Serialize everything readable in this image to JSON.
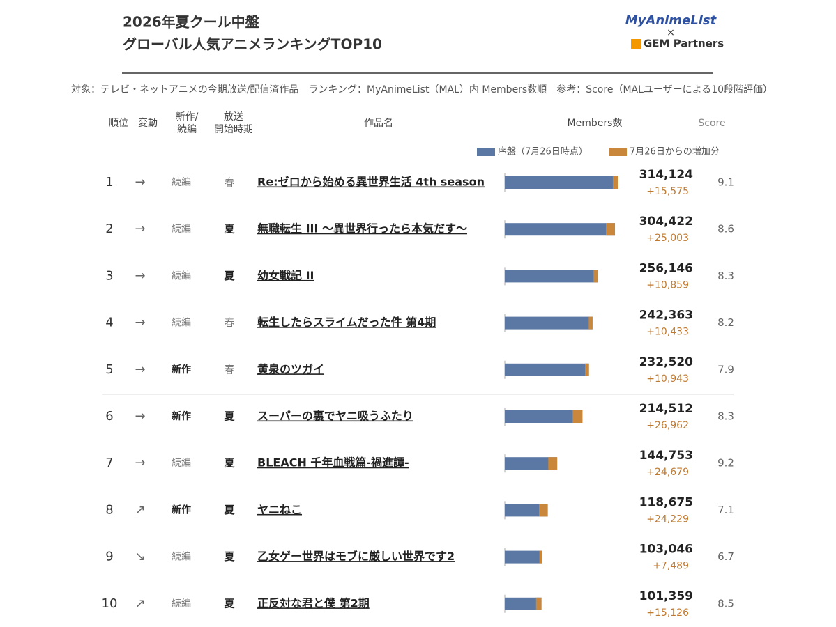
{
  "header": {
    "title": [
      "2026年夏クール中盤",
      "グローバル人気アニメランキングTOP10"
    ],
    "logo": {
      "top": "MyAnimeList",
      "mid": "×",
      "bottom": "GEM Partners"
    },
    "note": "対象：テレビ・ネットアニメの今期放送/配信済作品　ランキング：MyAnimeList（MAL）内 Members数順　参考：Score（MALユーザーによる10段階評価）"
  },
  "columns": [
    "順位",
    "変動",
    "新作/\n続編",
    "放送\n開始時期",
    "作品名",
    "Members数",
    "Score"
  ],
  "legend": [
    {
      "name": "序盤（7月26日時点）",
      "color": "#5b77a3"
    },
    {
      "name": "7月26日からの増加分",
      "color": "#c8873a"
    }
  ],
  "rows": [
    {
      "rank": 1,
      "change": "→",
      "kind": "続編",
      "kind_bold": false,
      "season": "春",
      "season_bold": false,
      "title": "Re:ゼロから始める異世界生活 4th season",
      "members": 314124,
      "members_label": "314,124",
      "increase": 15575,
      "increase_label": "+15,575",
      "score": 9.1
    },
    {
      "rank": 2,
      "change": "→",
      "kind": "続編",
      "kind_bold": false,
      "season": "夏",
      "season_bold": true,
      "title": "無職転生 III ～異世界行ったら本気だす～",
      "members": 304422,
      "members_label": "304,422",
      "increase": 25003,
      "increase_label": "+25,003",
      "score": 8.6
    },
    {
      "rank": 3,
      "change": "→",
      "kind": "続編",
      "kind_bold": false,
      "season": "夏",
      "season_bold": true,
      "title": "幼女戦記 II",
      "members": 256146,
      "members_label": "256,146",
      "increase": 10859,
      "increase_label": "+10,859",
      "score": 8.3
    },
    {
      "rank": 4,
      "change": "→",
      "kind": "続編",
      "kind_bold": false,
      "season": "春",
      "season_bold": false,
      "title": "転生したらスライムだった件 第4期",
      "members": 242363,
      "members_label": "242,363",
      "increase": 10433,
      "increase_label": "+10,433",
      "score": 8.2
    },
    {
      "rank": 5,
      "change": "→",
      "kind": "新作",
      "kind_bold": true,
      "season": "春",
      "season_bold": false,
      "title": "黄泉のツガイ",
      "members": 232520,
      "members_label": "232,520",
      "increase": 10943,
      "increase_label": "+10,943",
      "score": 7.9
    },
    {
      "rank": 6,
      "change": "→",
      "kind": "新作",
      "kind_bold": true,
      "season": "夏",
      "season_bold": true,
      "title": "スーパーの裏でヤニ吸うふたり",
      "members": 214512,
      "members_label": "214,512",
      "increase": 26962,
      "increase_label": "+26,962",
      "score": 8.3
    },
    {
      "rank": 7,
      "change": "→",
      "kind": "続編",
      "kind_bold": false,
      "season": "夏",
      "season_bold": true,
      "title": "BLEACH 千年血戦篇-禍進譚-",
      "members": 144753,
      "members_label": "144,753",
      "increase": 24679,
      "increase_label": "+24,679",
      "score": 9.2
    },
    {
      "rank": 8,
      "change": "↗",
      "kind": "新作",
      "kind_bold": true,
      "season": "夏",
      "season_bold": true,
      "title": "ヤニねこ",
      "members": 118675,
      "members_label": "118,675",
      "increase": 24229,
      "increase_label": "+24,229",
      "score": 7.1
    },
    {
      "rank": 9,
      "change": "↘",
      "kind": "続編",
      "kind_bold": false,
      "season": "夏",
      "season_bold": true,
      "title": "乙女ゲー世界はモブに厳しい世界です2",
      "members": 103046,
      "members_label": "103,046",
      "increase": 7489,
      "increase_label": "+7,489",
      "score": 6.7
    },
    {
      "rank": 10,
      "change": "↗",
      "kind": "続編",
      "kind_bold": false,
      "season": "夏",
      "season_bold": true,
      "title": "正反対な君と僕 第2期",
      "members": 101359,
      "members_label": "101,359",
      "increase": 15126,
      "increase_label": "+15,126",
      "score": 8.5
    }
  ]
}
